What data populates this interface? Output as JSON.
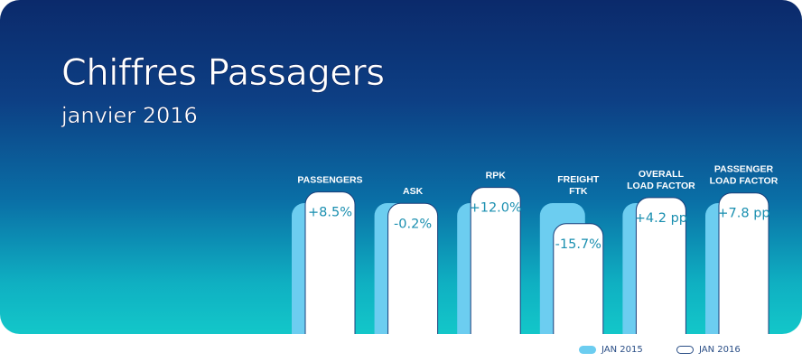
{
  "title": "Chiffres Passagers",
  "subtitle": "janvier 2016",
  "chart_data": {
    "type": "bar",
    "series": [
      {
        "name": "JAN 2015",
        "values": [
          100,
          100,
          100,
          100,
          100,
          100
        ]
      },
      {
        "name": "JAN 2016",
        "values": [
          108.5,
          99.8,
          112.0,
          84.3,
          104.2,
          107.8
        ]
      }
    ],
    "categories": [
      [
        "PASSENGERS"
      ],
      [
        "ASK"
      ],
      [
        "RPK"
      ],
      [
        "FREIGHT",
        "FTK"
      ],
      [
        "OVERALL",
        "LOAD FACTOR"
      ],
      [
        "PASSENGER",
        "LOAD FACTOR"
      ]
    ],
    "labels": [
      "+8.5%",
      "-0.2%",
      "+12.0%",
      "-15.7%",
      "+4.2 pp",
      "+7.8 pp"
    ],
    "legend_position": "bottom-right",
    "colors": {
      "JAN 2015": "#6ccdf0",
      "JAN 2016": "#ffffff",
      "value_text": "#1a8fb0",
      "legend_text": "#2a4e86"
    }
  }
}
